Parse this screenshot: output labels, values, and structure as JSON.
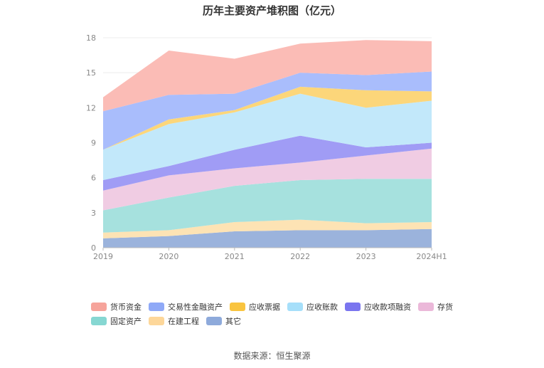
{
  "chart_data": {
    "type": "area",
    "stacked": true,
    "title": "历年主要资产堆积图（亿元）",
    "x": [
      "2019",
      "2020",
      "2021",
      "2022",
      "2023",
      "2024H1"
    ],
    "y_ticks": [
      "0",
      "3",
      "6",
      "9",
      "12",
      "15",
      "18"
    ],
    "ylim": [
      0,
      18
    ],
    "series": [
      {
        "name": "其它",
        "color": "#9bb3dc",
        "values": [
          0.8,
          1.0,
          1.4,
          1.5,
          1.5,
          1.6
        ]
      },
      {
        "name": "在建工程",
        "color": "#fde3b4",
        "values": [
          0.5,
          0.5,
          0.8,
          0.9,
          0.6,
          0.6
        ]
      },
      {
        "name": "固定资产",
        "color": "#a6e1de",
        "values": [
          1.9,
          2.8,
          3.1,
          3.4,
          3.8,
          3.7
        ]
      },
      {
        "name": "存货",
        "color": "#f0cce3",
        "values": [
          1.7,
          1.9,
          1.5,
          1.5,
          2.0,
          2.6
        ]
      },
      {
        "name": "应收款项融资",
        "color": "#a09cf5",
        "values": [
          0.9,
          0.8,
          1.6,
          2.3,
          0.7,
          0.5
        ]
      },
      {
        "name": "应收账款",
        "color": "#c2e8fa",
        "values": [
          2.6,
          3.6,
          3.2,
          3.6,
          3.4,
          3.6
        ]
      },
      {
        "name": "应收票据",
        "color": "#fcd67a",
        "values": [
          0.0,
          0.4,
          0.2,
          0.6,
          1.5,
          0.8
        ]
      },
      {
        "name": "交易性金融资产",
        "color": "#a9bdfc",
        "values": [
          3.3,
          2.1,
          1.4,
          1.2,
          1.3,
          1.7
        ]
      },
      {
        "name": "货币资金",
        "color": "#fbbcb6",
        "values": [
          1.2,
          3.8,
          3.0,
          2.5,
          3.0,
          2.6
        ]
      }
    ],
    "legend": [
      {
        "name": "货币资金",
        "color": "#f6a49b"
      },
      {
        "name": "交易性金融资产",
        "color": "#8fa9f7"
      },
      {
        "name": "应收票据",
        "color": "#f9c43f"
      },
      {
        "name": "应收账款",
        "color": "#a6dffa"
      },
      {
        "name": "应收款项融资",
        "color": "#7a75ef"
      },
      {
        "name": "存货",
        "color": "#ebb8d9"
      },
      {
        "name": "固定资产",
        "color": "#86d7d2"
      },
      {
        "name": "在建工程",
        "color": "#fdd79a"
      },
      {
        "name": "其它",
        "color": "#8eaadb"
      }
    ],
    "source": "数据来源：恒生聚源"
  }
}
